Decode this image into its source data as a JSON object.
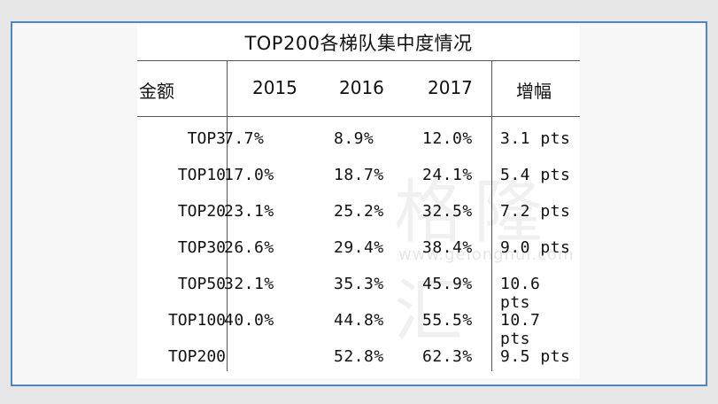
{
  "table": {
    "title": "TOP200各梯队集中度情况",
    "headers": {
      "label": "金额",
      "y2015": "2015",
      "y2016": "2016",
      "y2017": "2017",
      "increase": "增幅"
    },
    "rows": [
      {
        "label": "TOP3",
        "v2015": "7.7%",
        "v2016": "8.9%",
        "v2017": "12.0%",
        "increase": "3.1 pts"
      },
      {
        "label": "TOP10",
        "v2015": "17.0%",
        "v2016": "18.7%",
        "v2017": "24.1%",
        "increase": "5.4 pts"
      },
      {
        "label": "TOP20",
        "v2015": "23.1%",
        "v2016": "25.2%",
        "v2017": "32.5%",
        "increase": "7.2 pts"
      },
      {
        "label": "TOP30",
        "v2015": "26.6%",
        "v2016": "29.4%",
        "v2017": "38.4%",
        "increase": "9.0 pts"
      },
      {
        "label": "TOP50",
        "v2015": "32.1%",
        "v2016": "35.3%",
        "v2017": "45.9%",
        "increase": "10.6 pts"
      },
      {
        "label": "TOP100",
        "v2015": "40.0%",
        "v2016": "44.8%",
        "v2017": "55.5%",
        "increase": "10.7 pts"
      },
      {
        "label": "TOP200",
        "v2015": "",
        "v2016": "52.8%",
        "v2017": "62.3%",
        "increase": "9.5 pts"
      }
    ]
  },
  "watermark": {
    "text": "格隆汇",
    "url": "www.gelonghui.com"
  },
  "colors": {
    "frame_border": "#4f86c6",
    "background": "#e6e6e6",
    "text": "#111111"
  }
}
